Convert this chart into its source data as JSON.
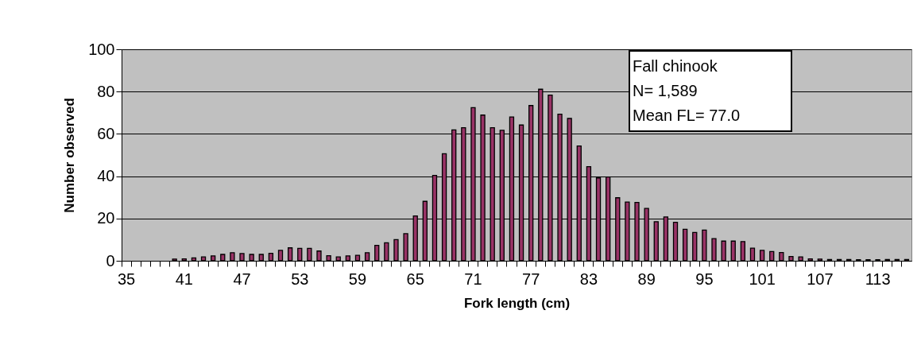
{
  "chart_data": {
    "type": "bar",
    "xlabel": "Fork length (cm)",
    "ylabel": "Number observed",
    "categories": [
      "35",
      null,
      null,
      null,
      null,
      null,
      "41",
      null,
      null,
      null,
      null,
      null,
      "47",
      null,
      null,
      null,
      null,
      null,
      "53",
      null,
      null,
      null,
      null,
      null,
      "59",
      null,
      null,
      null,
      null,
      null,
      "65",
      null,
      null,
      null,
      null,
      null,
      "71",
      null,
      null,
      null,
      null,
      null,
      "77",
      null,
      null,
      null,
      null,
      null,
      "83",
      null,
      null,
      null,
      null,
      null,
      "89",
      null,
      null,
      null,
      null,
      null,
      "95",
      null,
      null,
      null,
      null,
      null,
      "101",
      null,
      null,
      null,
      null,
      null,
      "107",
      null,
      null,
      null,
      null,
      null,
      "113",
      null,
      null,
      null
    ],
    "values": [
      null,
      null,
      null,
      null,
      null,
      0.8,
      0.9,
      1.4,
      1.8,
      2.3,
      3.0,
      3.8,
      3.4,
      3.0,
      3.0,
      3.5,
      4.9,
      6.1,
      5.9,
      5.9,
      4.6,
      2.4,
      1.8,
      2.3,
      2.6,
      3.8,
      7.3,
      8.5,
      10.0,
      12.8,
      21.2,
      28.1,
      40.4,
      50.6,
      61.9,
      62.9,
      72.4,
      68.9,
      62.9,
      61.7,
      68.0,
      64.2,
      73.4,
      81.1,
      78.3,
      69.3,
      67.3,
      54.3,
      44.5,
      39.2,
      39.6,
      29.8,
      27.8,
      27.6,
      24.8,
      18.5,
      20.7,
      18.2,
      14.9,
      13.4,
      14.5,
      10.5,
      9.3,
      9.3,
      9.1,
      6.0,
      4.9,
      4.4,
      3.9,
      2.0,
      1.8,
      0.9,
      0.8,
      0.6,
      0.6,
      0.6,
      0.5,
      0.5,
      0.5,
      0.6,
      0.6,
      0.6
    ],
    "color": "#993366",
    "ylim": [
      0,
      100
    ],
    "yticks": [
      0,
      20,
      40,
      60,
      80,
      100
    ],
    "grid": "y",
    "annotations": [
      "Fall chinook",
      "N= 1,589",
      "Mean FL= 77.0"
    ]
  }
}
